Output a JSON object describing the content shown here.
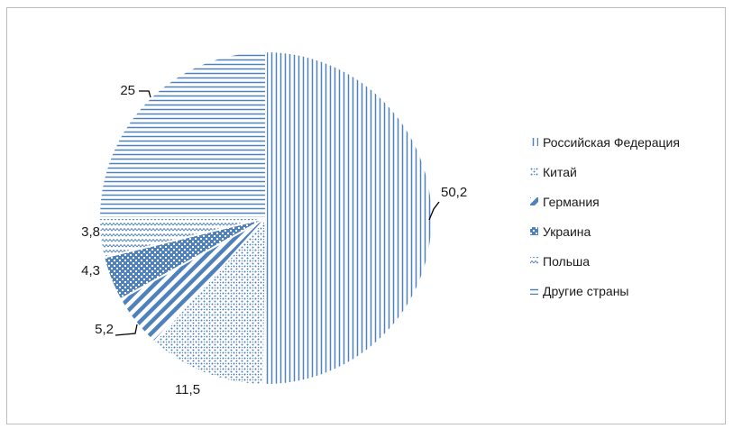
{
  "chart_data": {
    "type": "pie",
    "title": "",
    "categories": [
      "Российская Федерация",
      "Китай",
      "Германия",
      "Украина",
      "Польша",
      "Другие страны"
    ],
    "values": [
      50.2,
      11.5,
      5.2,
      4.3,
      3.8,
      25
    ],
    "data_labels": [
      "50,2",
      "11,5",
      "5,2",
      "4,3",
      "3,8",
      "25"
    ],
    "patterns": [
      "vertical-lines",
      "dots",
      "wide-diagonal",
      "weave",
      "zigzag",
      "horizontal-lines"
    ],
    "color": "#4f81bd",
    "legend_position": "right"
  }
}
